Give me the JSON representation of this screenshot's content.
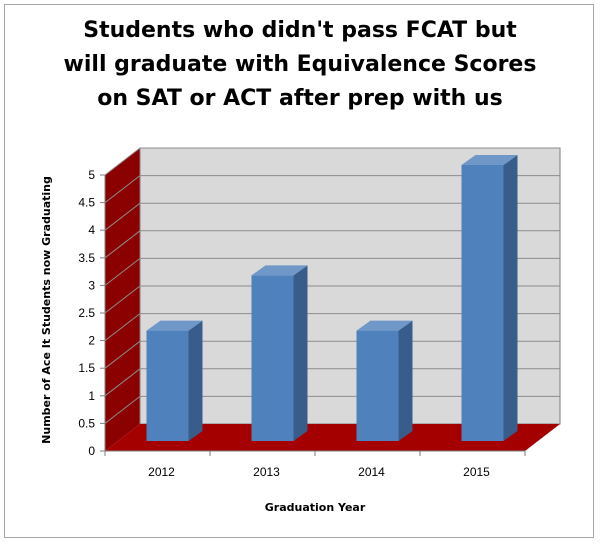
{
  "chart_data": {
    "type": "bar",
    "title_lines": [
      "Students who didn't pass FCAT but",
      "will graduate with Equivalence Scores",
      "on SAT or ACT after prep with us"
    ],
    "xlabel": "Graduation Year",
    "ylabel": "Number of Ace It Students now Graduating",
    "categories": [
      "2012",
      "2013",
      "2014",
      "2015"
    ],
    "values": [
      2,
      3,
      2,
      5
    ],
    "ylim": [
      0,
      5
    ],
    "yticks": [
      "0",
      "0.5",
      "1",
      "1.5",
      "2",
      "2.5",
      "3",
      "3.5",
      "4",
      "4.5",
      "5"
    ],
    "grid": true,
    "legend": "none",
    "colors": {
      "bar_front": "#4f81bd",
      "bar_side": "#385d8a",
      "bar_top": "#6f97c8",
      "wall_back": "#d9d9d9",
      "wall_side": "#8b0000",
      "floor": "#a50000",
      "gridline": "#8c8c8c"
    }
  }
}
